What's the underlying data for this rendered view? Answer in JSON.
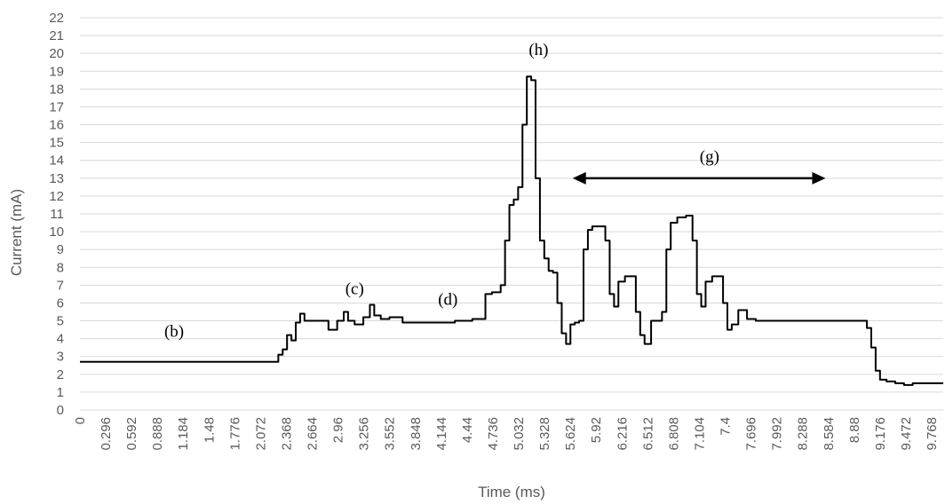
{
  "chart_data": {
    "type": "line",
    "title": "",
    "xlabel": "Time (ms)",
    "ylabel": "Current (mA)",
    "xlim": [
      0,
      9.9
    ],
    "ylim": [
      0,
      22
    ],
    "y_ticks": [
      "0",
      "1",
      "2",
      "3",
      "4",
      "5",
      "6",
      "7",
      "8",
      "9",
      "10",
      "11",
      "12",
      "13",
      "14",
      "15",
      "16",
      "17",
      "18",
      "19",
      "20",
      "21",
      "22"
    ],
    "x_ticks": [
      "0",
      "0.296",
      "0.592",
      "0.888",
      "1.184",
      "1.48",
      "1.776",
      "2.072",
      "2.368",
      "2.664",
      "2.96",
      "3.256",
      "3.552",
      "3.848",
      "4.144",
      "4.44",
      "4.736",
      "5.032",
      "5.328",
      "5.624",
      "5.92",
      "6.216",
      "6.512",
      "6.808",
      "7.104",
      "7.4",
      "7.696",
      "7.992",
      "8.288",
      "8.584",
      "8.88",
      "9.176",
      "9.472",
      "9.768"
    ],
    "grid": true,
    "legend": "none",
    "series_color": "#000000",
    "series": [
      {
        "x": [
          0,
          0.5,
          1.0,
          1.5,
          2.0,
          2.25,
          2.3,
          2.35,
          2.4,
          2.45,
          2.5,
          2.55,
          2.6,
          2.7,
          2.8,
          2.9,
          3.0,
          3.05,
          3.1,
          3.2,
          3.3,
          3.35,
          3.4,
          3.5,
          3.6,
          3.8,
          4.0,
          4.2,
          4.4,
          4.6,
          4.7,
          4.75,
          4.8,
          4.85,
          4.9,
          4.95,
          5.0,
          5.05,
          5.1,
          5.15,
          5.2,
          5.25,
          5.3,
          5.35,
          5.4,
          5.45,
          5.5,
          5.55,
          5.6,
          5.65,
          5.7,
          5.75,
          5.8,
          5.85,
          5.9,
          6.0,
          6.05,
          6.1,
          6.15,
          6.2,
          6.3,
          6.35,
          6.4,
          6.45,
          6.5,
          6.6,
          6.65,
          6.7,
          6.75,
          6.8,
          6.9,
          7.0,
          7.05,
          7.1,
          7.15,
          7.2,
          7.3,
          7.35,
          7.4,
          7.45,
          7.5,
          7.6,
          7.7,
          7.8,
          8.0,
          8.2,
          8.4,
          8.6,
          8.8,
          8.9,
          9.0,
          9.05,
          9.1,
          9.15,
          9.2,
          9.3,
          9.4,
          9.5,
          9.6,
          9.7,
          9.8,
          9.9
        ],
        "y": [
          2.7,
          2.7,
          2.7,
          2.7,
          2.7,
          2.7,
          3.1,
          3.4,
          4.2,
          3.9,
          4.9,
          5.4,
          5.0,
          5.0,
          5.0,
          4.5,
          5.0,
          5.5,
          5.0,
          4.8,
          5.2,
          5.9,
          5.3,
          5.1,
          5.2,
          4.9,
          4.9,
          4.9,
          5.0,
          5.1,
          6.5,
          6.6,
          6.6,
          7.0,
          9.5,
          11.5,
          11.8,
          12.5,
          16.0,
          18.7,
          18.5,
          13.0,
          9.5,
          8.5,
          7.8,
          7.7,
          6.0,
          4.3,
          3.7,
          4.8,
          4.9,
          5.0,
          9.0,
          10.1,
          10.3,
          10.3,
          9.5,
          6.5,
          5.8,
          7.2,
          7.5,
          7.5,
          5.5,
          4.2,
          3.7,
          5.0,
          5.0,
          5.5,
          9.0,
          10.5,
          10.8,
          10.9,
          9.5,
          6.5,
          5.8,
          7.2,
          7.5,
          7.5,
          6.0,
          4.5,
          4.8,
          5.6,
          5.1,
          5.0,
          5.0,
          5.0,
          5.0,
          5.0,
          5.0,
          5.0,
          5.0,
          4.6,
          3.5,
          2.2,
          1.7,
          1.6,
          1.5,
          1.4,
          1.5,
          1.5,
          1.5,
          1.5
        ]
      }
    ],
    "annotations": [
      {
        "text": "(b)",
        "x": 1.08,
        "y": 4.1
      },
      {
        "text": "(c)",
        "x": 3.15,
        "y": 6.5
      },
      {
        "text": "(d)",
        "x": 4.22,
        "y": 5.9
      },
      {
        "text": "(h)",
        "x": 5.26,
        "y": 19.9
      },
      {
        "text": "(g)",
        "x": 7.22,
        "y": 13.9
      }
    ],
    "arrow": {
      "x_start": 5.65,
      "x_end": 8.55,
      "y": 13.0
    }
  }
}
